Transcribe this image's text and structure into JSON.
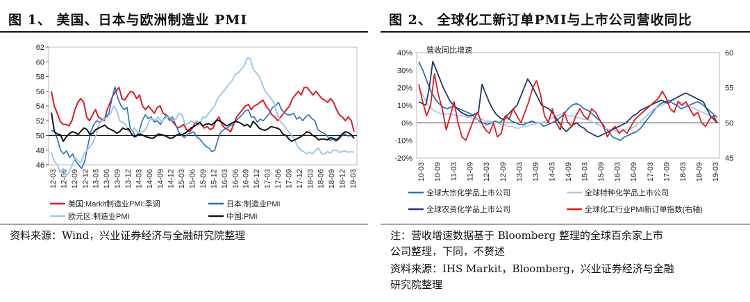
{
  "figures": [
    {
      "title": "图 1、 美国、日本与欧洲制造业 PMI",
      "source": "资料来源：Wind，兴业证券经济与全融研究院整理",
      "chart_data": {
        "type": "line",
        "y_range": [
          46,
          62
        ],
        "y_ticks": [
          "62",
          "60",
          "58",
          "56",
          "54",
          "52",
          "50",
          "48",
          "46"
        ],
        "x_ticks": [
          "12-03",
          "12-06",
          "12-09",
          "12-12",
          "13-03",
          "13-06",
          "13-09",
          "13-12",
          "14-03",
          "14-06",
          "14-09",
          "14-12",
          "15-03",
          "15-06",
          "15-09",
          "15-12",
          "16-03",
          "16-06",
          "16-09",
          "16-12",
          "17-03",
          "17-06",
          "17-09",
          "17-12",
          "18-03",
          "18-06",
          "18-09",
          "18-12",
          "19-03"
        ],
        "reference_line": 50,
        "series": [
          {
            "name": "美国:Markit制造业PMI:季调",
            "color": "#e0191f",
            "values": [
              56,
              54,
              53,
              51.9,
              51.5,
              51.5,
              51.3,
              52,
              53.5,
              54.5,
              55,
              54.5,
              52.5,
              52,
              52.8,
              53.5,
              52.5,
              52.2,
              52,
              53.5,
              54.5,
              55.5,
              56,
              56.5,
              55,
              54.8,
              55.5,
              56,
              55.8,
              55,
              55.5,
              54,
              53.5,
              54,
              53.5,
              53,
              53.8,
              54,
              53,
              52.8,
              52.5,
              52,
              51.5,
              51,
              51.2,
              51.5,
              50.8,
              50.5,
              51,
              51.8,
              51.5,
              51.5,
              51,
              51.2,
              50.8,
              51,
              52,
              52.5,
              51.5,
              51,
              50.8,
              50.5,
              51.5,
              52.5,
              53,
              53.5,
              54,
              54.2,
              53.5,
              54,
              54.2,
              54.5,
              54.8,
              54,
              53.5,
              52.8,
              52.5,
              52,
              52.5,
              53,
              53.5,
              54,
              55,
              55.5,
              56,
              55.5,
              56.5,
              56.5,
              56,
              55.5,
              56,
              55.5,
              55,
              54.8,
              54.5,
              55,
              54.5,
              53.5,
              52.8,
              52.5,
              52,
              52.5,
              52,
              50.5
            ]
          },
          {
            "name": "日本:制造业PMI",
            "color": "#1f6fc1",
            "values": [
              50.7,
              50.5,
              49.5,
              48,
              47.5,
              47.9,
              47,
              47.5,
              46.5,
              46,
              45.5,
              46.5,
              48.5,
              50.5,
              51.5,
              52,
              51.8,
              52.2,
              52.5,
              53,
              55,
              56.6,
              55,
              54,
              53.5,
              53.8,
              51,
              50.5,
              49.8,
              50.5,
              52,
              52.8,
              52.3,
              52.5,
              51.8,
              52,
              51.5,
              52.2,
              52.8,
              52,
              52.5,
              51.5,
              50.5,
              50,
              49.7,
              50.2,
              50.3,
              50.5,
              49.8,
              49.5,
              49,
              48.5,
              48.3,
              47.8,
              48,
              49.5,
              50.5,
              50.8,
              51,
              51.3,
              51.5,
              52,
              52.4,
              52.8,
              53.3,
              53.5,
              52.5,
              52.5,
              51.8,
              52.2,
              52,
              52.5,
              53,
              53.8,
              54,
              54.5,
              53.5,
              53.1,
              52.8,
              52.8,
              53,
              52.2,
              52.5,
              52,
              52.5,
              52.8,
              52.3,
              52,
              50.8,
              50.5,
              50.3,
              50,
              49.3,
              49.5,
              49.2,
              49.5,
              50,
              50.2,
              49.9,
              50,
              49.6
            ]
          },
          {
            "name": "欧元区:制造业PMI",
            "color": "#9fc6ea",
            "values": [
              47.7,
              46.5,
              46,
              45,
              45.5,
              44.5,
              45,
              46,
              47,
              46.5,
              46.3,
              47.5,
              48,
              48.5,
              49,
              50,
              51.5,
              52,
              52.3,
              52.5,
              53,
              54,
              53.4,
              52,
              51.8,
              51.5,
              50.5,
              50.7,
              51,
              50.3,
              50.5,
              50.5,
              51,
              52,
              52.3,
              52,
              52.5,
              51.9,
              52.2,
              52.5,
              52.5,
              52,
              52.3,
              53,
              52.8,
              51.5,
              51.6,
              52,
              51.7,
              52,
              51.5,
              52.5,
              52.4,
              53,
              53.5,
              54,
              55,
              55.5,
              56,
              56.5,
              57,
              57.5,
              58.3,
              58.5,
              59,
              59.5,
              60.5,
              60.5,
              59,
              58.5,
              58,
              57,
              56,
              55.5,
              55,
              54.5,
              53,
              52,
              51.5,
              51,
              50.5,
              50,
              49.3,
              48.5,
              48,
              47.8,
              47.5,
              47.7,
              47.5,
              48,
              48.3,
              47.5,
              47.5,
              47.8,
              47.6,
              48,
              48,
              47.7,
              47.8,
              47.9,
              47.7,
              47.8,
              47.7
            ]
          },
          {
            "name": "中国:PMI",
            "color": "#111111",
            "values": [
              53.1,
              50.5,
              50.2,
              50.1,
              49.2,
              49.8,
              50.2,
              50.5,
              50.4,
              50.1,
              50.6,
              51,
              50.8,
              50.1,
              50.3,
              50.8,
              51,
              51.2,
              51.4,
              51,
              50.8,
              50.6,
              50.3,
              50.5,
              51,
              50.8,
              50.9,
              50.2,
              49.8,
              50.1,
              50.2,
              50,
              49.8,
              49.7,
              49.6,
              49.8,
              50.2,
              50.1,
              50,
              49.8,
              49.6,
              49.7,
              50,
              50.2,
              50.1,
              50.3,
              50.6,
              51,
              51.2,
              51.5,
              51.8,
              51.3,
              51.5,
              51.6,
              51.4,
              51.8,
              52.1,
              51.9,
              51.6,
              51.3,
              51.5,
              51.7,
              51.9,
              51.8,
              51.6,
              51.3,
              51.5,
              51.1,
              51.9,
              51.5,
              51,
              50.8,
              50.7,
              50.9,
              51.2,
              51.1,
              51,
              50.8,
              50.2,
              50,
              49.5,
              49.2,
              49.4,
              49.6,
              49.8,
              50.1,
              50.5,
              50.4,
              50,
              49.8,
              49.4,
              49.5,
              49.5,
              49.4,
              49.7,
              49.6,
              49.4,
              49.7,
              50.2,
              50.5,
              50.4,
              50.1,
              49.6
            ]
          }
        ]
      }
    },
    {
      "title": "图 2、 全球化工新订单PMI与上市公司营收同比",
      "note_lines": [
        "注：营收增速数据基于 Bloomberg 整理的全球百余家上市",
        "公司整理，下同，不赘述",
        "资料来源：IHS Markit，Bloomberg，兴业证券经济与全融",
        "研究院整理"
      ],
      "chart_data": {
        "type": "line",
        "ylabel": "营收同比增速",
        "y_left_range": [
          -20,
          40
        ],
        "y_left_ticks": [
          "40%",
          "30%",
          "20%",
          "10%",
          "0%",
          "-10%",
          "-20%"
        ],
        "y_right_range": [
          45,
          60
        ],
        "y_right_ticks": [
          "60",
          "55",
          "50",
          "45"
        ],
        "x_ticks": [
          "10-03",
          "10-09",
          "11-03",
          "11-09",
          "12-03",
          "12-09",
          "13-03",
          "13-09",
          "14-03",
          "14-09",
          "15-03",
          "15-09",
          "16-03",
          "16-09",
          "17-03",
          "17-09",
          "18-03",
          "18-09",
          "19-03"
        ],
        "series": [
          {
            "name": "全球大宗化学品上市公司",
            "axis": "left",
            "color": "#2e75b6",
            "values": [
              35,
              30,
              24,
              18,
              14,
              11,
              9,
              8,
              9,
              9,
              8,
              7,
              6,
              5,
              3,
              1,
              0,
              -1,
              0,
              1,
              0,
              2,
              3,
              1,
              0,
              -1,
              -1,
              0,
              1,
              0,
              0,
              -2,
              -1,
              0,
              1,
              3,
              5,
              8,
              10,
              11,
              10,
              8,
              7,
              5,
              3,
              1,
              -2,
              -5,
              -8,
              -9,
              -10,
              -8,
              -7,
              -6,
              -5,
              -3,
              0,
              3,
              6,
              9,
              11,
              12,
              13,
              11,
              10,
              8,
              9,
              10,
              11,
              12,
              11,
              9,
              7,
              5,
              3
            ]
          },
          {
            "name": "全球特种化学品上市公司",
            "axis": "left",
            "color": "#a9cbe9",
            "values": [
              20,
              16,
              12,
              9,
              7,
              6,
              5,
              5,
              5,
              5,
              4,
              4,
              4,
              3,
              3,
              2,
              2,
              2,
              1,
              1,
              0,
              0,
              -1,
              -1,
              -2,
              -2,
              -3,
              -3,
              -2,
              -2,
              -1,
              -1,
              0,
              0,
              1,
              2,
              3,
              4,
              5,
              5,
              4,
              4,
              3,
              3,
              2,
              2,
              1,
              0,
              -1,
              -2,
              -3,
              -4,
              -4,
              -5,
              -5,
              -4,
              -4,
              -3,
              -2,
              0,
              2,
              4,
              6,
              8,
              9,
              10,
              11,
              12,
              13,
              13,
              12,
              11,
              10,
              9,
              8,
              7,
              6,
              5,
              4,
              3,
              3
            ]
          },
          {
            "name": "全球农资化学品上市公司",
            "axis": "left",
            "color": "#1f3864",
            "values": [
              12,
              11,
              10,
              20,
              35,
              30,
              25,
              20,
              16,
              12,
              10,
              8,
              6,
              5,
              4,
              4,
              5,
              6,
              22,
              17,
              12,
              8,
              5,
              3,
              2,
              4,
              6,
              8,
              10,
              15,
              20,
              25,
              22,
              18,
              14,
              10,
              9,
              8,
              6,
              3,
              0,
              -3,
              -5,
              -3,
              -1,
              0,
              -2,
              -3,
              -5,
              -6,
              -7,
              -8,
              -7,
              -6,
              -5,
              -4,
              -3,
              -2,
              -1,
              0,
              2,
              4,
              5,
              7,
              8,
              9,
              10,
              11,
              12,
              13,
              12,
              11,
              13,
              14,
              15,
              16,
              17,
              16,
              15,
              14,
              13,
              12,
              8,
              4,
              2,
              0
            ]
          },
          {
            "name": "全球化工行业PMI新订单指数(右轴)",
            "axis": "right",
            "color": "#e0191f",
            "values": [
              55.5,
              53,
              51,
              52.5,
              57,
              54,
              52,
              49,
              51,
              53,
              50,
              48,
              47.5,
              49,
              50.5,
              51.5,
              50,
              49,
              48.5,
              50,
              48,
              48.5,
              51,
              50.5,
              52,
              51,
              50,
              51.5,
              53,
              55,
              56,
              54,
              51,
              50,
              52,
              50,
              49,
              51.5,
              50,
              49.5,
              51,
              52,
              51,
              50.5,
              52,
              51.5,
              50.5,
              49.5,
              48,
              49,
              49.5,
              48.5,
              49,
              48.5,
              49.5,
              50.5,
              51,
              51.5,
              52,
              52.5,
              53,
              53.5,
              54.5,
              53.5,
              52,
              51.5,
              53,
              52.5,
              53,
              52,
              51,
              51.5,
              50,
              49.5,
              50.5,
              51,
              50
            ]
          }
        ]
      }
    }
  ]
}
